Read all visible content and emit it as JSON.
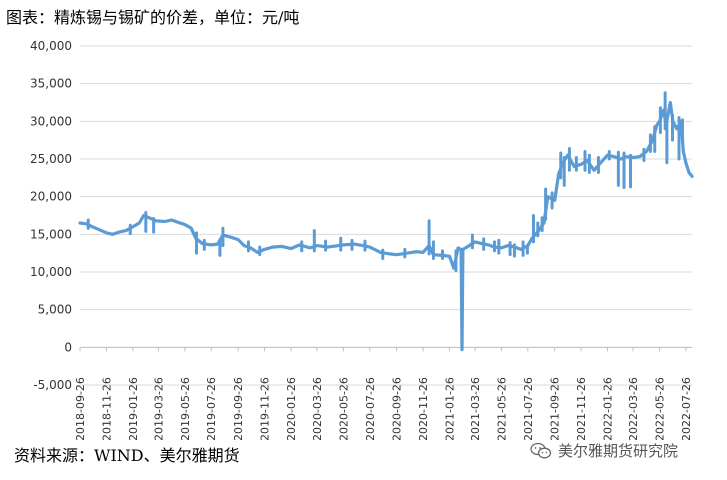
{
  "title": "图表：精炼锡与锡矿的价差，单位：元/吨",
  "source": "资料来源：WIND、美尔雅期货",
  "watermark": {
    "text": "美尔雅期货研究院",
    "icon": "wechat-icon"
  },
  "chart_data": {
    "type": "line",
    "title": "图表：精炼锡与锡矿的价差，单位：元/吨",
    "xlabel": "",
    "ylabel": "",
    "ylim": [
      -5000,
      40000
    ],
    "yticks": [
      -5000,
      0,
      5000,
      10000,
      15000,
      20000,
      25000,
      30000,
      35000,
      40000
    ],
    "ytick_labels": [
      "-5,000",
      "0",
      "5,000",
      "10,000",
      "15,000",
      "20,000",
      "25,000",
      "30,000",
      "35,000",
      "40,000"
    ],
    "xlim": [
      "2018-09-26",
      "2022-08-09"
    ],
    "xticks": [
      "2018-09-26",
      "2018-11-26",
      "2019-01-26",
      "2019-03-26",
      "2019-05-26",
      "2019-07-26",
      "2019-09-26",
      "2019-11-26",
      "2020-01-26",
      "2020-03-26",
      "2020-05-26",
      "2020-07-26",
      "2020-09-26",
      "2020-11-26",
      "2021-01-26",
      "2021-03-26",
      "2021-05-26",
      "2021-07-26",
      "2021-09-26",
      "2021-11-26",
      "2022-01-26",
      "2022-03-26",
      "2022-05-26",
      "2022-07-26"
    ],
    "grid": true,
    "legend": "none",
    "series": [
      {
        "color": "#5B9BD5",
        "points": [
          [
            "2018-09-26",
            16500
          ],
          [
            "2018-10-10",
            16400
          ],
          [
            "2018-10-25",
            16000
          ],
          [
            "2018-11-10",
            15600
          ],
          [
            "2018-11-26",
            15200
          ],
          [
            "2018-12-10",
            15000
          ],
          [
            "2018-12-25",
            15300
          ],
          [
            "2019-01-10",
            15500
          ],
          [
            "2019-01-26",
            16000
          ],
          [
            "2019-02-10",
            16500
          ],
          [
            "2019-02-20",
            17500
          ],
          [
            "2019-03-05",
            17200
          ],
          [
            "2019-03-20",
            16800
          ],
          [
            "2019-04-10",
            16700
          ],
          [
            "2019-04-25",
            16900
          ],
          [
            "2019-05-10",
            16600
          ],
          [
            "2019-05-26",
            16300
          ],
          [
            "2019-06-10",
            15800
          ],
          [
            "2019-06-20",
            14500
          ],
          [
            "2019-07-05",
            13800
          ],
          [
            "2019-07-26",
            13600
          ],
          [
            "2019-08-10",
            13700
          ],
          [
            "2019-08-22",
            14900
          ],
          [
            "2019-09-10",
            14600
          ],
          [
            "2019-09-26",
            14300
          ],
          [
            "2019-10-10",
            13500
          ],
          [
            "2019-10-25",
            13200
          ],
          [
            "2019-11-10",
            12600
          ],
          [
            "2019-11-26",
            13000
          ],
          [
            "2019-12-15",
            13300
          ],
          [
            "2020-01-05",
            13400
          ],
          [
            "2020-01-26",
            13100
          ],
          [
            "2020-02-15",
            13600
          ],
          [
            "2020-03-10",
            13200
          ],
          [
            "2020-03-26",
            13500
          ],
          [
            "2020-04-20",
            13300
          ],
          [
            "2020-05-26",
            13600
          ],
          [
            "2020-06-20",
            13700
          ],
          [
            "2020-07-10",
            13500
          ],
          [
            "2020-07-26",
            13300
          ],
          [
            "2020-08-20",
            12600
          ],
          [
            "2020-09-10",
            12400
          ],
          [
            "2020-09-26",
            12300
          ],
          [
            "2020-10-20",
            12500
          ],
          [
            "2020-11-10",
            12700
          ],
          [
            "2020-11-26",
            12600
          ],
          [
            "2020-12-10",
            13500
          ],
          [
            "2020-12-20",
            12300
          ],
          [
            "2021-01-10",
            12200
          ],
          [
            "2021-01-26",
            12100
          ],
          [
            "2021-02-05",
            10500
          ],
          [
            "2021-02-15",
            13200
          ],
          [
            "2021-02-22",
            13000
          ],
          [
            "2021-02-24",
            -300
          ],
          [
            "2021-02-26",
            13000
          ],
          [
            "2021-03-10",
            13400
          ],
          [
            "2021-03-26",
            14000
          ],
          [
            "2021-04-10",
            13800
          ],
          [
            "2021-04-26",
            13600
          ],
          [
            "2021-05-10",
            13300
          ],
          [
            "2021-05-26",
            13200
          ],
          [
            "2021-06-10",
            13500
          ],
          [
            "2021-06-26",
            13300
          ],
          [
            "2021-07-10",
            13000
          ],
          [
            "2021-07-26",
            13500
          ],
          [
            "2021-08-05",
            14500
          ],
          [
            "2021-08-20",
            15500
          ],
          [
            "2021-09-01",
            16500
          ],
          [
            "2021-09-10",
            20000
          ],
          [
            "2021-09-26",
            19500
          ],
          [
            "2021-10-05",
            23000
          ],
          [
            "2021-10-15",
            24500
          ],
          [
            "2021-10-26",
            25500
          ],
          [
            "2021-11-10",
            24000
          ],
          [
            "2021-11-26",
            24300
          ],
          [
            "2021-12-10",
            24800
          ],
          [
            "2021-12-26",
            23500
          ],
          [
            "2022-01-10",
            24500
          ],
          [
            "2022-01-26",
            25500
          ],
          [
            "2022-02-10",
            25300
          ],
          [
            "2022-02-26",
            25000
          ],
          [
            "2022-03-10",
            25300
          ],
          [
            "2022-03-26",
            25200
          ],
          [
            "2022-04-10",
            25300
          ],
          [
            "2022-04-26",
            26000
          ],
          [
            "2022-05-10",
            27500
          ],
          [
            "2022-05-20",
            29500
          ],
          [
            "2022-05-26",
            30000
          ],
          [
            "2022-06-05",
            31500
          ],
          [
            "2022-06-10",
            29500
          ],
          [
            "2022-06-20",
            32500
          ],
          [
            "2022-06-26",
            30000
          ],
          [
            "2022-07-05",
            29000
          ],
          [
            "2022-07-15",
            30000
          ],
          [
            "2022-07-20",
            26000
          ],
          [
            "2022-07-26",
            24500
          ],
          [
            "2022-08-02",
            23200
          ],
          [
            "2022-08-09",
            22700
          ]
        ],
        "spikes": [
          [
            "2018-10-15",
            15800,
            16900
          ],
          [
            "2019-01-20",
            15100,
            16200
          ],
          [
            "2019-02-25",
            15400,
            17900
          ],
          [
            "2019-03-15",
            15300,
            17100
          ],
          [
            "2019-06-22",
            12500,
            15200
          ],
          [
            "2019-07-10",
            13000,
            14200
          ],
          [
            "2019-08-15",
            12200,
            14300
          ],
          [
            "2019-08-22",
            13500,
            15800
          ],
          [
            "2019-10-20",
            12800,
            14000
          ],
          [
            "2019-11-15",
            12300,
            13300
          ],
          [
            "2020-02-20",
            12800,
            14000
          ],
          [
            "2020-03-20",
            12800,
            15500
          ],
          [
            "2020-04-15",
            12900,
            14100
          ],
          [
            "2020-05-20",
            12900,
            14500
          ],
          [
            "2020-06-15",
            13000,
            14200
          ],
          [
            "2020-07-15",
            12900,
            14100
          ],
          [
            "2020-08-25",
            11800,
            12900
          ],
          [
            "2020-10-15",
            12000,
            13000
          ],
          [
            "2020-12-10",
            12400,
            16800
          ],
          [
            "2020-12-20",
            11800,
            14000
          ],
          [
            "2021-01-10",
            11800,
            12800
          ],
          [
            "2021-02-10",
            10200,
            12800
          ],
          [
            "2021-03-20",
            13200,
            14900
          ],
          [
            "2021-04-15",
            13000,
            14400
          ],
          [
            "2021-05-10",
            12800,
            14000
          ],
          [
            "2021-05-20",
            12500,
            14200
          ],
          [
            "2021-06-15",
            12300,
            13900
          ],
          [
            "2021-06-25",
            12100,
            13600
          ],
          [
            "2021-07-15",
            12200,
            14000
          ],
          [
            "2021-07-25",
            12500,
            13500
          ],
          [
            "2021-08-08",
            14000,
            17500
          ],
          [
            "2021-08-18",
            14800,
            16500
          ],
          [
            "2021-08-28",
            15500,
            17200
          ],
          [
            "2021-09-05",
            17000,
            21000
          ],
          [
            "2021-09-20",
            18500,
            20500
          ],
          [
            "2021-10-10",
            22500,
            25800
          ],
          [
            "2021-10-18",
            21500,
            25200
          ],
          [
            "2021-10-30",
            23500,
            26400
          ],
          [
            "2021-11-15",
            23500,
            25200
          ],
          [
            "2021-12-05",
            23500,
            26000
          ],
          [
            "2021-12-15",
            23200,
            25500
          ],
          [
            "2022-01-05",
            23200,
            25200
          ],
          [
            "2022-01-30",
            25000,
            26000
          ],
          [
            "2022-02-20",
            21500,
            25900
          ],
          [
            "2022-03-05",
            21200,
            25800
          ],
          [
            "2022-03-20",
            21300,
            25500
          ],
          [
            "2022-04-20",
            24800,
            26300
          ],
          [
            "2022-05-05",
            26000,
            28200
          ],
          [
            "2022-05-15",
            26000,
            29300
          ],
          [
            "2022-05-28",
            28500,
            31800
          ],
          [
            "2022-06-08",
            29000,
            33800
          ],
          [
            "2022-06-12",
            24500,
            30500
          ],
          [
            "2022-06-25",
            27500,
            30800
          ],
          [
            "2022-07-10",
            25000,
            30500
          ],
          [
            "2022-07-18",
            27800,
            30200
          ]
        ]
      }
    ]
  }
}
